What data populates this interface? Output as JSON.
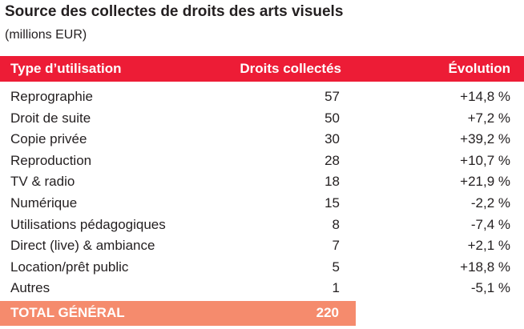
{
  "title": "Source des collectes de droits des arts visuels",
  "subtitle": "(millions EUR)",
  "header": {
    "type": "Type d’utilisation",
    "droits": "Droits collectés",
    "evolution": "Évolution"
  },
  "total": {
    "label": "TOTAL GÉNÉRAL",
    "value": "220"
  },
  "colors": {
    "header_bg": "#ed1c36",
    "total_bg": "#f58b6d"
  },
  "chart_data": {
    "type": "table",
    "title": "Source des collectes de droits des arts visuels",
    "subtitle": "(millions EUR)",
    "columns": [
      "Type d’utilisation",
      "Droits collectés",
      "Évolution"
    ],
    "rows": [
      {
        "type": "Reprographie",
        "value": "57",
        "evolution": "+14,8 %"
      },
      {
        "type": "Droit de suite",
        "value": "50",
        "evolution": "+7,2 %"
      },
      {
        "type": "Copie privée",
        "value": "30",
        "evolution": "+39,2 %"
      },
      {
        "type": "Reproduction",
        "value": "28",
        "evolution": "+10,7 %"
      },
      {
        "type": "TV & radio",
        "value": "18",
        "evolution": "+21,9 %"
      },
      {
        "type": "Numérique",
        "value": "15",
        "evolution": "-2,2 %"
      },
      {
        "type": "Utilisations pédagogiques",
        "value": "8",
        "evolution": "-7,4 %"
      },
      {
        "type": "Direct (live) & ambiance",
        "value": "7",
        "evolution": "+2,1 %"
      },
      {
        "type": "Location/prêt public",
        "value": "5",
        "evolution": "+18,8 %"
      },
      {
        "type": "Autres",
        "value": "1",
        "evolution": "-5,1 %"
      }
    ],
    "total": {
      "label": "TOTAL GÉNÉRAL",
      "value": "220"
    }
  }
}
